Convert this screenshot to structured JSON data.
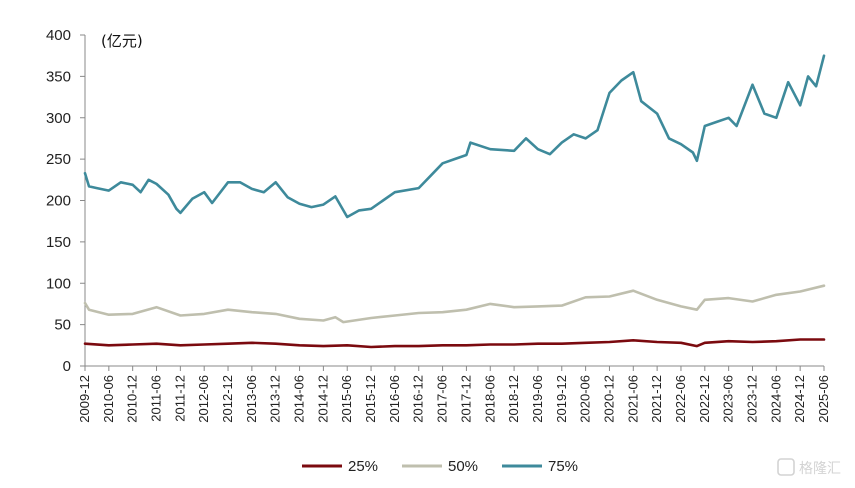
{
  "chart_data": {
    "type": "line",
    "unit_label": "(亿元)",
    "ylim": [
      0,
      400
    ],
    "y_ticks": [
      0,
      50,
      100,
      150,
      200,
      250,
      300,
      350,
      400
    ],
    "x_tick_labels": [
      "2009-12",
      "2010-06",
      "2010-12",
      "2011-06",
      "2011-12",
      "2012-06",
      "2012-12",
      "2013-06",
      "2013-12",
      "2014-06",
      "2014-12",
      "2015-06",
      "2015-12",
      "2016-06",
      "2016-12",
      "2017-06",
      "2017-12",
      "2018-06",
      "2018-12",
      "2019-06",
      "2019-12",
      "2020-06",
      "2020-12",
      "2021-06",
      "2021-12",
      "2022-06",
      "2022-12",
      "2023-06",
      "2023-12",
      "2024-06",
      "2024-12",
      "2025-06"
    ],
    "x_start": "2009-12",
    "x_end": "2025-06",
    "legend_position": "bottom",
    "grid": false,
    "series": [
      {
        "name": "25%",
        "color": "#7b0a0f",
        "points": [
          [
            "2009-12",
            27
          ],
          [
            "2010-06",
            25
          ],
          [
            "2010-12",
            26
          ],
          [
            "2011-06",
            27
          ],
          [
            "2011-12",
            25
          ],
          [
            "2012-06",
            26
          ],
          [
            "2012-12",
            27
          ],
          [
            "2013-06",
            28
          ],
          [
            "2013-12",
            27
          ],
          [
            "2014-06",
            25
          ],
          [
            "2014-12",
            24
          ],
          [
            "2015-06",
            25
          ],
          [
            "2015-12",
            23
          ],
          [
            "2016-06",
            24
          ],
          [
            "2016-12",
            24
          ],
          [
            "2017-06",
            25
          ],
          [
            "2017-12",
            25
          ],
          [
            "2018-06",
            26
          ],
          [
            "2018-12",
            26
          ],
          [
            "2019-06",
            27
          ],
          [
            "2019-12",
            27
          ],
          [
            "2020-06",
            28
          ],
          [
            "2020-12",
            29
          ],
          [
            "2021-06",
            31
          ],
          [
            "2021-12",
            29
          ],
          [
            "2022-06",
            28
          ],
          [
            "2022-10",
            24
          ],
          [
            "2022-12",
            28
          ],
          [
            "2023-06",
            30
          ],
          [
            "2023-12",
            29
          ],
          [
            "2024-06",
            30
          ],
          [
            "2024-12",
            32
          ],
          [
            "2025-06",
            32
          ]
        ]
      },
      {
        "name": "50%",
        "color": "#bfbfae",
        "points": [
          [
            "2009-12",
            76
          ],
          [
            "2010-01",
            68
          ],
          [
            "2010-06",
            62
          ],
          [
            "2010-12",
            63
          ],
          [
            "2011-06",
            71
          ],
          [
            "2011-12",
            61
          ],
          [
            "2012-06",
            63
          ],
          [
            "2012-12",
            68
          ],
          [
            "2013-06",
            65
          ],
          [
            "2013-12",
            63
          ],
          [
            "2014-06",
            57
          ],
          [
            "2014-12",
            55
          ],
          [
            "2015-03",
            59
          ],
          [
            "2015-05",
            53
          ],
          [
            "2015-12",
            58
          ],
          [
            "2016-06",
            61
          ],
          [
            "2016-12",
            64
          ],
          [
            "2017-06",
            65
          ],
          [
            "2017-12",
            68
          ],
          [
            "2018-06",
            75
          ],
          [
            "2018-12",
            71
          ],
          [
            "2019-06",
            72
          ],
          [
            "2019-12",
            73
          ],
          [
            "2020-06",
            83
          ],
          [
            "2020-12",
            84
          ],
          [
            "2021-06",
            91
          ],
          [
            "2021-12",
            80
          ],
          [
            "2022-06",
            72
          ],
          [
            "2022-10",
            68
          ],
          [
            "2022-12",
            80
          ],
          [
            "2023-06",
            82
          ],
          [
            "2023-12",
            78
          ],
          [
            "2024-06",
            86
          ],
          [
            "2024-12",
            90
          ],
          [
            "2025-06",
            97
          ]
        ]
      },
      {
        "name": "75%",
        "color": "#3e8a9b",
        "points": [
          [
            "2009-12",
            233
          ],
          [
            "2010-01",
            217
          ],
          [
            "2010-03",
            215
          ],
          [
            "2010-06",
            212
          ],
          [
            "2010-09",
            222
          ],
          [
            "2010-12",
            219
          ],
          [
            "2011-02",
            210
          ],
          [
            "2011-04",
            225
          ],
          [
            "2011-06",
            220
          ],
          [
            "2011-09",
            207
          ],
          [
            "2011-11",
            190
          ],
          [
            "2011-12",
            185
          ],
          [
            "2012-03",
            202
          ],
          [
            "2012-06",
            210
          ],
          [
            "2012-08",
            197
          ],
          [
            "2012-12",
            222
          ],
          [
            "2013-03",
            222
          ],
          [
            "2013-06",
            214
          ],
          [
            "2013-09",
            210
          ],
          [
            "2013-12",
            222
          ],
          [
            "2014-03",
            204
          ],
          [
            "2014-06",
            196
          ],
          [
            "2014-09",
            192
          ],
          [
            "2014-12",
            195
          ],
          [
            "2015-03",
            205
          ],
          [
            "2015-06",
            180
          ],
          [
            "2015-09",
            188
          ],
          [
            "2015-12",
            190
          ],
          [
            "2016-03",
            200
          ],
          [
            "2016-06",
            210
          ],
          [
            "2016-12",
            215
          ],
          [
            "2017-03",
            230
          ],
          [
            "2017-06",
            245
          ],
          [
            "2017-09",
            250
          ],
          [
            "2017-12",
            255
          ],
          [
            "2018-01",
            270
          ],
          [
            "2018-06",
            262
          ],
          [
            "2018-12",
            260
          ],
          [
            "2019-03",
            275
          ],
          [
            "2019-06",
            262
          ],
          [
            "2019-09",
            256
          ],
          [
            "2019-12",
            270
          ],
          [
            "2020-03",
            280
          ],
          [
            "2020-06",
            275
          ],
          [
            "2020-09",
            285
          ],
          [
            "2020-12",
            330
          ],
          [
            "2021-03",
            345
          ],
          [
            "2021-06",
            355
          ],
          [
            "2021-08",
            320
          ],
          [
            "2021-12",
            305
          ],
          [
            "2022-03",
            275
          ],
          [
            "2022-06",
            268
          ],
          [
            "2022-09",
            258
          ],
          [
            "2022-10",
            248
          ],
          [
            "2022-12",
            290
          ],
          [
            "2023-03",
            295
          ],
          [
            "2023-06",
            300
          ],
          [
            "2023-08",
            290
          ],
          [
            "2023-12",
            340
          ],
          [
            "2024-03",
            305
          ],
          [
            "2024-06",
            300
          ],
          [
            "2024-09",
            343
          ],
          [
            "2024-12",
            315
          ],
          [
            "2025-02",
            350
          ],
          [
            "2025-04",
            338
          ],
          [
            "2025-06",
            375
          ]
        ]
      }
    ]
  },
  "watermark": {
    "text": "格隆汇"
  }
}
